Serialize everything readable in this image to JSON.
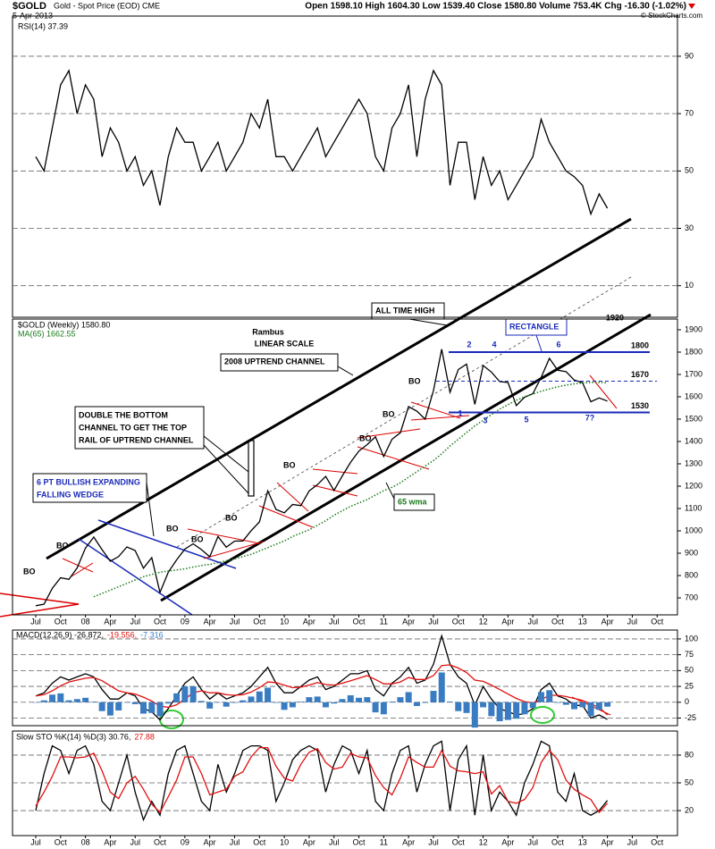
{
  "header": {
    "symbol": "$GOLD",
    "name": "Gold - Spot Price (EOD) CME",
    "date": "5-Apr-2013",
    "quote": "Open 1598.10 High 1604.30 Low 1539.40 Close 1580.80 Volume 753.4K Chg -16.30 (-1.02%)",
    "credit": "© StockCharts.com"
  },
  "chart_data": [
    {
      "type": "line",
      "ylim": [
        -1,
        104
      ],
      "yticks": [
        10,
        30,
        50,
        70,
        90
      ],
      "grid": true,
      "series": [
        {
          "name": "RSI(14) 37.39",
          "color": "#000000",
          "style": "line",
          "values": [
            55,
            50,
            65,
            80,
            85,
            70,
            80,
            75,
            55,
            65,
            60,
            50,
            55,
            45,
            50,
            38,
            55,
            65,
            60,
            60,
            50,
            55,
            60,
            50,
            55,
            60,
            70,
            65,
            75,
            55,
            55,
            50,
            55,
            60,
            65,
            55,
            60,
            65,
            70,
            75,
            70,
            55,
            50,
            65,
            70,
            80,
            55,
            75,
            85,
            80,
            45,
            60,
            60,
            40,
            55,
            45,
            50,
            40,
            45,
            50,
            55,
            68,
            60,
            55,
            50,
            48,
            45,
            35,
            42,
            37
          ]
        }
      ]
    },
    {
      "type": "line",
      "ylim": [
        624,
        1948
      ],
      "yticks": [
        700,
        800,
        900,
        1000,
        1100,
        1200,
        1300,
        1400,
        1500,
        1600,
        1700,
        1800,
        1900
      ],
      "grid": false,
      "categories": [
        "Jul",
        null,
        null,
        "Oct",
        null,
        null,
        "08",
        null,
        null,
        "Apr",
        null,
        null,
        "Jul",
        null,
        null,
        "Oct",
        null,
        null,
        "09",
        null,
        null,
        "Apr",
        null,
        null,
        "Jul",
        null,
        null,
        "Oct",
        null,
        null,
        "10",
        null,
        null,
        "Apr",
        null,
        null,
        "Jul",
        null,
        null,
        "Oct",
        null,
        null,
        "11",
        null,
        null,
        "Apr",
        null,
        null,
        "Jul",
        null,
        null,
        "Oct",
        null,
        null,
        "12",
        null,
        null,
        "Apr",
        null,
        null,
        "Jul",
        null,
        null,
        "Oct",
        null,
        null,
        "13",
        null,
        null,
        "Apr",
        null,
        null,
        "Jul",
        null,
        null,
        "Oct"
      ],
      "series": [
        {
          "name": "$GOLD (Weekly) 1580.80",
          "color": "#000000",
          "style": "line",
          "values": [
            665,
            672,
            743,
            790,
            783,
            834,
            923,
            972,
            916,
            864,
            885,
            928,
            912,
            833,
            880,
            724,
            815,
            870,
            919,
            942,
            916,
            884,
            975,
            927,
            954,
            955,
            1001,
            1040,
            1179,
            1096,
            1081,
            1118,
            1113,
            1179,
            1207,
            1244,
            1181,
            1246,
            1307,
            1357,
            1386,
            1421,
            1333,
            1410,
            1439,
            1556,
            1536,
            1500,
            1628,
            1813,
            1620,
            1722,
            1746,
            1566,
            1740,
            1711,
            1668,
            1664,
            1561,
            1598,
            1614,
            1687,
            1772,
            1719,
            1713,
            1675,
            1663,
            1578,
            1595,
            1581,
            null,
            null,
            null,
            null,
            null,
            null
          ]
        },
        {
          "name": "MA(65) 1662.55",
          "color": "#1a7a1a",
          "style": "dotted",
          "values": [
            null,
            null,
            null,
            null,
            null,
            null,
            null,
            705,
            720,
            735,
            750,
            765,
            780,
            795,
            805,
            815,
            820,
            825,
            830,
            838,
            845,
            850,
            858,
            866,
            875,
            885,
            895,
            910,
            925,
            940,
            955,
            975,
            990,
            1005,
            1025,
            1045,
            1070,
            1090,
            1110,
            1125,
            1140,
            1160,
            1180,
            1195,
            1215,
            1240,
            1265,
            1290,
            1315,
            1345,
            1380,
            1410,
            1440,
            1470,
            1495,
            1520,
            1545,
            1565,
            1585,
            1600,
            1612,
            1625,
            1635,
            1645,
            1652,
            1658,
            1662,
            1664,
            1664,
            1663,
            null,
            null,
            null,
            null,
            null,
            null
          ]
        }
      ],
      "levels": [
        1800,
        1670,
        1530
      ],
      "annotations": [
        "Rambus",
        "LINEAR SCALE",
        "2008 UPTREND CHANNEL",
        "ALL TIME HIGH",
        "RECTANGLE",
        "1920",
        "DOUBLE THE BOTTOM",
        "CHANNEL TO GET THE TOP",
        "RAIL OF UPTREND CHANNEL",
        "6 PT BULLISH EXPANDING",
        "FALLING WEDGE",
        "65 wma",
        "BO",
        "BO",
        "BO",
        "BO",
        "BO",
        "BO",
        "BO",
        "BO",
        "BO",
        "1",
        "2",
        "3",
        "4",
        "5",
        "6",
        "7?"
      ]
    },
    {
      "type": "line",
      "ylim": [
        -37,
        114
      ],
      "yticks": [
        -25,
        0,
        25,
        50,
        75,
        100
      ],
      "grid": true,
      "series": [
        {
          "name": "MACD(12,26,9) -26.872,",
          "color": "#000000",
          "style": "line",
          "values": [
            10,
            15,
            30,
            40,
            35,
            40,
            45,
            40,
            20,
            5,
            5,
            15,
            10,
            -10,
            -15,
            -28,
            -10,
            10,
            30,
            40,
            20,
            5,
            15,
            5,
            10,
            15,
            25,
            40,
            55,
            30,
            15,
            15,
            25,
            35,
            40,
            20,
            25,
            35,
            45,
            45,
            50,
            20,
            10,
            30,
            40,
            55,
            30,
            35,
            60,
            105,
            60,
            40,
            30,
            -5,
            25,
            5,
            -10,
            -15,
            -20,
            -18,
            -10,
            20,
            30,
            10,
            5,
            -5,
            -5,
            -25,
            -20,
            -27
          ]
        },
        {
          "name": "-19.556,",
          "color": "#e01010",
          "style": "line",
          "values": [
            10,
            12,
            18,
            26,
            32,
            35,
            38,
            39,
            34,
            26,
            18,
            15,
            13,
            8,
            2,
            -6,
            -8,
            -4,
            5,
            15,
            18,
            15,
            15,
            12,
            11,
            12,
            16,
            23,
            32,
            31,
            27,
            23,
            24,
            27,
            31,
            28,
            27,
            30,
            34,
            38,
            42,
            36,
            29,
            29,
            32,
            39,
            36,
            36,
            42,
            58,
            59,
            54,
            47,
            35,
            33,
            27,
            20,
            13,
            6,
            1,
            -1,
            4,
            11,
            11,
            9,
            6,
            3,
            -3,
            -8,
            -20
          ]
        },
        {
          "name": "-7.316",
          "color": "#3a7cc2",
          "style": "bar",
          "values": [
            0,
            3,
            12,
            14,
            3,
            5,
            7,
            1,
            -14,
            -21,
            -13,
            0,
            -3,
            -18,
            -17,
            -22,
            -2,
            14,
            25,
            25,
            2,
            -10,
            0,
            -7,
            -1,
            3,
            9,
            17,
            23,
            -1,
            -12,
            -8,
            1,
            8,
            9,
            -8,
            -2,
            5,
            11,
            7,
            8,
            -16,
            -19,
            1,
            8,
            16,
            -6,
            -1,
            18,
            47,
            1,
            -14,
            -17,
            -40,
            -8,
            -22,
            -30,
            -28,
            -26,
            -19,
            -9,
            16,
            19,
            -1,
            -4,
            -11,
            -8,
            -22,
            -12,
            -7
          ]
        }
      ]
    },
    {
      "type": "line",
      "ylim": [
        -7,
        106
      ],
      "yticks": [
        20,
        50,
        80
      ],
      "grid": true,
      "categories": [
        "Jul",
        null,
        null,
        "Oct",
        null,
        null,
        "08",
        null,
        null,
        "Apr",
        null,
        null,
        "Jul",
        null,
        null,
        "Oct",
        null,
        null,
        "09",
        null,
        null,
        "Apr",
        null,
        null,
        "Jul",
        null,
        null,
        "Oct",
        null,
        null,
        "10",
        null,
        null,
        "Apr",
        null,
        null,
        "Jul",
        null,
        null,
        "Oct",
        null,
        null,
        "11",
        null,
        null,
        "Apr",
        null,
        null,
        "Jul",
        null,
        null,
        "Oct",
        null,
        null,
        "12",
        null,
        null,
        "Apr",
        null,
        null,
        "Jul",
        null,
        null,
        "Oct",
        null,
        null,
        "13",
        null,
        null,
        "Apr",
        null,
        null,
        "Jul",
        null,
        null,
        "Oct"
      ],
      "series": [
        {
          "name": "Slow STO %K(14) %D(3) 30.76,",
          "color": "#000000",
          "style": "line",
          "values": [
            20,
            60,
            90,
            85,
            60,
            85,
            90,
            70,
            30,
            20,
            50,
            80,
            40,
            10,
            30,
            15,
            60,
            85,
            90,
            60,
            30,
            20,
            70,
            40,
            60,
            85,
            90,
            90,
            85,
            30,
            50,
            75,
            85,
            90,
            85,
            40,
            70,
            90,
            85,
            60,
            85,
            30,
            20,
            60,
            85,
            90,
            40,
            70,
            90,
            95,
            20,
            75,
            90,
            15,
            80,
            20,
            40,
            30,
            15,
            50,
            70,
            95,
            90,
            40,
            30,
            60,
            20,
            15,
            20,
            31,
            null,
            null,
            null,
            null,
            null,
            null
          ]
        },
        {
          "name": "27.88",
          "color": "#e01010",
          "style": "line",
          "values": [
            25,
            40,
            57,
            78,
            78,
            77,
            78,
            82,
            63,
            40,
            33,
            50,
            57,
            43,
            27,
            18,
            35,
            53,
            78,
            78,
            60,
            37,
            40,
            43,
            57,
            62,
            78,
            88,
            88,
            68,
            55,
            52,
            70,
            83,
            87,
            72,
            65,
            67,
            82,
            78,
            77,
            58,
            45,
            37,
            55,
            78,
            72,
            67,
            67,
            85,
            68,
            63,
            62,
            60,
            62,
            38,
            47,
            30,
            28,
            32,
            45,
            72,
            85,
            75,
            53,
            43,
            37,
            32,
            18,
            28,
            null,
            null,
            null,
            null,
            null,
            null
          ]
        }
      ]
    }
  ]
}
